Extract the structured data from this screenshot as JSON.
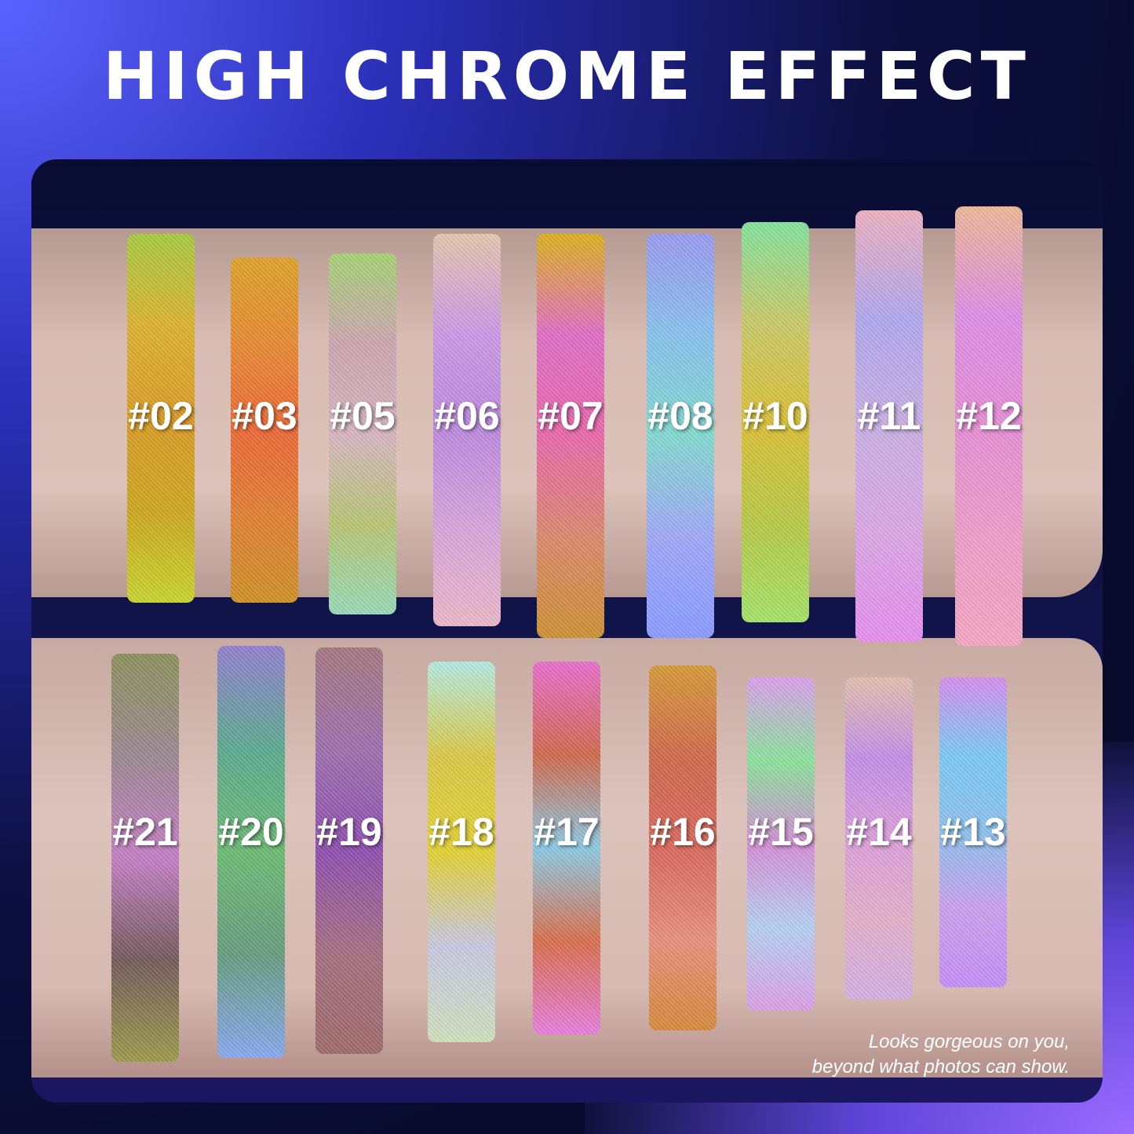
{
  "title": "HIGH CHROME EFFECT",
  "top_row": [
    {
      "label": "#02",
      "colors": [
        "#a8c84a",
        "#d8b23a",
        "#d49b2f",
        "#c9a62a",
        "#c8d23a"
      ]
    },
    {
      "label": "#03",
      "colors": [
        "#d8a233",
        "#e08a3a",
        "#e26a3c",
        "#d9803a",
        "#c9902e"
      ]
    },
    {
      "label": "#05",
      "colors": [
        "#a8d07a",
        "#c9a6b0",
        "#d4b6c0",
        "#b8c47a",
        "#9cd8b8"
      ]
    },
    {
      "label": "#06",
      "colors": [
        "#e2c6b0",
        "#c89ae0",
        "#b98ad8",
        "#d4a6d8",
        "#e8b8c8"
      ]
    },
    {
      "label": "#07",
      "colors": [
        "#d8b02a",
        "#d870c0",
        "#e06aa8",
        "#d48a70",
        "#c8903a"
      ]
    },
    {
      "label": "#08",
      "colors": [
        "#9a9ae8",
        "#8cc0e8",
        "#88d8d0",
        "#a0a8f0",
        "#8a9aff"
      ]
    },
    {
      "label": "#10",
      "colors": [
        "#88e0a0",
        "#c8c870",
        "#d8c040",
        "#b8c850",
        "#a8e070"
      ]
    },
    {
      "label": "#11",
      "colors": [
        "#e8b0c0",
        "#b0a8e8",
        "#c8b0e0",
        "#d8a8e0",
        "#e090e8"
      ]
    },
    {
      "label": "#12",
      "colors": [
        "#e8b89a",
        "#d890e0",
        "#e090d0",
        "#e8a0c8",
        "#f0a8c0"
      ]
    }
  ],
  "bottom_row": [
    {
      "label": "#21",
      "colors": [
        "#8a9060",
        "#9a8890",
        "#c080c0",
        "#705a5a",
        "#9a9a50"
      ]
    },
    {
      "label": "#20",
      "colors": [
        "#9080c8",
        "#60a890",
        "#70b878",
        "#6a9a80",
        "#8aa8e8"
      ]
    },
    {
      "label": "#19",
      "colors": [
        "#a07880",
        "#9a70a8",
        "#8a50a8",
        "#a07080",
        "#9a6a6a"
      ]
    },
    {
      "label": "#18",
      "colors": [
        "#b8e8e0",
        "#d8c850",
        "#e0d040",
        "#c8c8e0",
        "#d0e0c0"
      ]
    },
    {
      "label": "#17",
      "colors": [
        "#e070c8",
        "#c86a50",
        "#90c8e0",
        "#d07050",
        "#e080d8"
      ]
    },
    {
      "label": "#16",
      "colors": [
        "#d09a40",
        "#c86a50",
        "#d06a60",
        "#e09080",
        "#d08a40"
      ]
    },
    {
      "label": "#15",
      "colors": [
        "#d8a0e8",
        "#90e0a0",
        "#d090d0",
        "#b8d0f0",
        "#d8a0e0"
      ]
    },
    {
      "label": "#14",
      "colors": [
        "#e0c0b0",
        "#c090e0",
        "#d8a0d8",
        "#e0b0c8",
        "#d0b0e0"
      ]
    },
    {
      "label": "#13",
      "colors": [
        "#d090e8",
        "#80c8f0",
        "#90c0e8",
        "#c8a0e8",
        "#c090f0"
      ]
    }
  ],
  "caption": {
    "line1": "Looks gorgeous on you,",
    "line2": "beyond what photos can show."
  }
}
